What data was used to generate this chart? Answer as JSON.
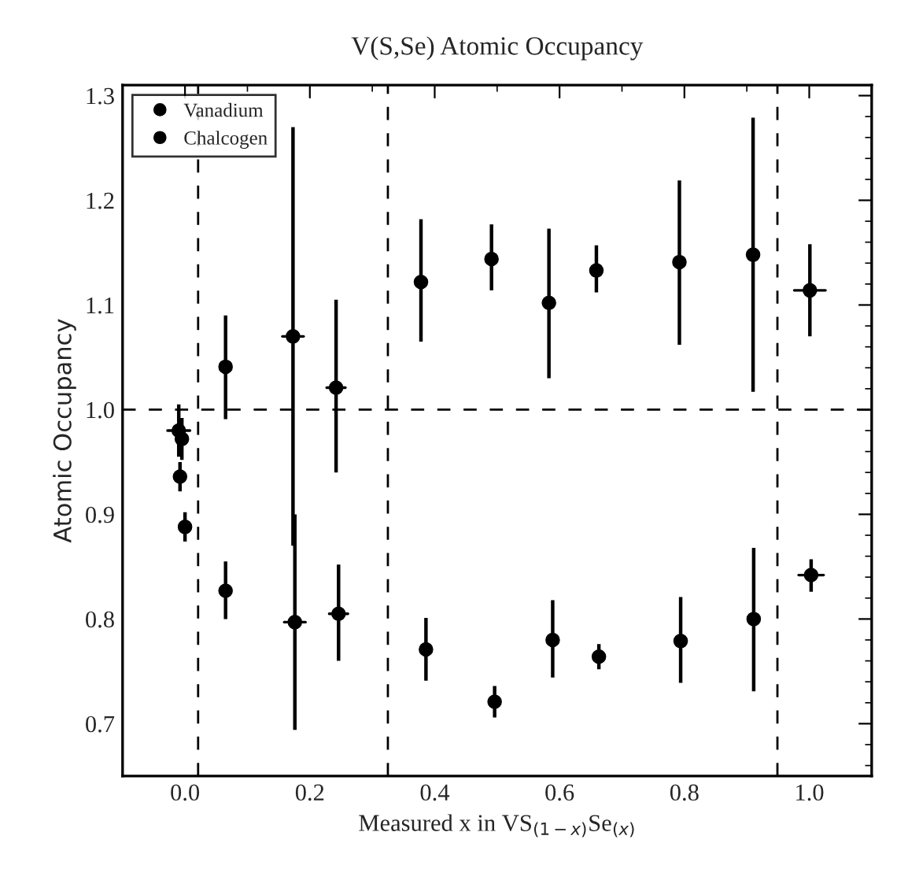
{
  "chart_data": {
    "type": "scatter",
    "title": "V(S,Se) Atomic Occupancy",
    "xlabel": "Measured x in VS$_{(1−x)}$Se$_{(x)}$",
    "ylabel": "Atomic Occupancy",
    "xlim": [
      -0.1,
      1.1
    ],
    "ylim": [
      0.65,
      1.31
    ],
    "xticks": [
      {
        "value": 0,
        "label": "0.0"
      },
      0.2,
      0.4,
      0.6,
      0.8,
      {
        "value": 1,
        "label": "1.0"
      }
    ],
    "yticks": [
      0.7,
      0.8,
      0.9,
      {
        "value": 1,
        "label": "1.0"
      },
      1.1,
      1.2,
      1.3
    ],
    "grid": false,
    "legend": "top left",
    "marker": "circle",
    "ref_lines": [
      {
        "axis": "y",
        "value": 1.0,
        "color": "#000000",
        "line_style": "dashed"
      },
      {
        "axis": "x",
        "value": 0.021,
        "color": "#000000",
        "line_style": "dashed"
      },
      {
        "axis": "x",
        "value": 0.325,
        "color": "#000000",
        "line_style": "dashed"
      },
      {
        "axis": "x",
        "value": 0.949,
        "color": "#000000",
        "line_style": "dashed"
      }
    ],
    "series": [
      {
        "name": "Vanadium",
        "color": "#000000",
        "x": [
          -0.01,
          -0.005,
          0.065,
          0.173,
          0.242,
          0.378,
          0.491,
          0.583,
          0.659,
          0.792,
          0.91,
          1.001
        ],
        "values": [
          0.98,
          0.972,
          1.041,
          1.07,
          1.021,
          1.122,
          1.144,
          1.102,
          1.133,
          1.141,
          1.148,
          1.114
        ],
        "errors": [
          [
            0.955,
            1.005
          ],
          [
            0.952,
            0.992
          ],
          [
            0.991,
            1.09
          ],
          [
            0.87,
            1.27
          ],
          [
            0.94,
            1.105
          ],
          [
            1.065,
            1.182
          ],
          [
            1.114,
            1.177
          ],
          [
            1.03,
            1.173
          ],
          [
            1.112,
            1.157
          ],
          [
            1.062,
            1.219
          ],
          [
            1.017,
            1.279
          ],
          [
            1.07,
            1.158
          ]
        ],
        "xerrors": [
          0.018,
          null,
          null,
          0.017,
          0.015,
          null,
          null,
          null,
          null,
          null,
          null,
          0.025
        ]
      },
      {
        "name": "Chalcogen",
        "color": "#000000",
        "x": [
          -0.008,
          0.0,
          0.065,
          0.176,
          0.246,
          0.386,
          0.496,
          0.589,
          0.663,
          0.794,
          0.911,
          1.003
        ],
        "values": [
          0.936,
          0.888,
          0.827,
          0.797,
          0.805,
          0.771,
          0.721,
          0.78,
          0.764,
          0.779,
          0.8,
          0.842
        ],
        "errors": [
          [
            0.922,
            0.95
          ],
          [
            0.874,
            0.902
          ],
          [
            0.8,
            0.855
          ],
          [
            0.694,
            0.9
          ],
          [
            0.76,
            0.852
          ],
          [
            0.741,
            0.801
          ],
          [
            0.706,
            0.736
          ],
          [
            0.744,
            0.818
          ],
          [
            0.752,
            0.776
          ],
          [
            0.739,
            0.821
          ],
          [
            0.731,
            0.868
          ],
          [
            0.826,
            0.857
          ]
        ],
        "xerrors": [
          null,
          null,
          null,
          0.017,
          0.015,
          null,
          null,
          null,
          null,
          null,
          null,
          0.02
        ]
      }
    ]
  }
}
